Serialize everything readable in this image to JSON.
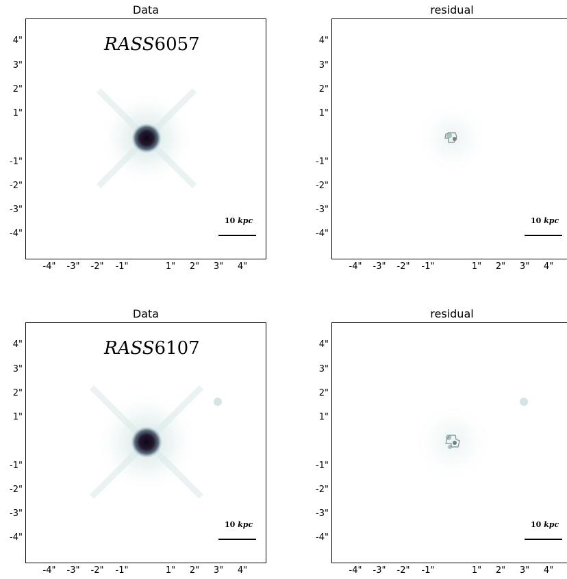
{
  "colors": {
    "accent": "#2b1d3a",
    "glow": "#8fb6b8"
  },
  "ticks": {
    "y": [
      "4\"",
      "3\"",
      "2\"",
      "1\"",
      "-1\"",
      "-2\"",
      "-3\"",
      "-4\""
    ],
    "x": [
      "-4\"",
      "-3\"",
      "-2\"",
      "-1\"",
      "1\"",
      "2\"",
      "3\"",
      "4\""
    ]
  },
  "panels": [
    {
      "title": "Data",
      "object_italic": "RASS",
      "object_number": "6057",
      "scale_value": "10",
      "scale_unit": "kpc"
    },
    {
      "title": "residual",
      "scale_value": "10",
      "scale_unit": "kpc"
    },
    {
      "title": "Data",
      "object_italic": "RASS",
      "object_number": "6107",
      "scale_value": "10",
      "scale_unit": "kpc"
    },
    {
      "title": "residual",
      "scale_value": "10",
      "scale_unit": "kpc"
    }
  ]
}
